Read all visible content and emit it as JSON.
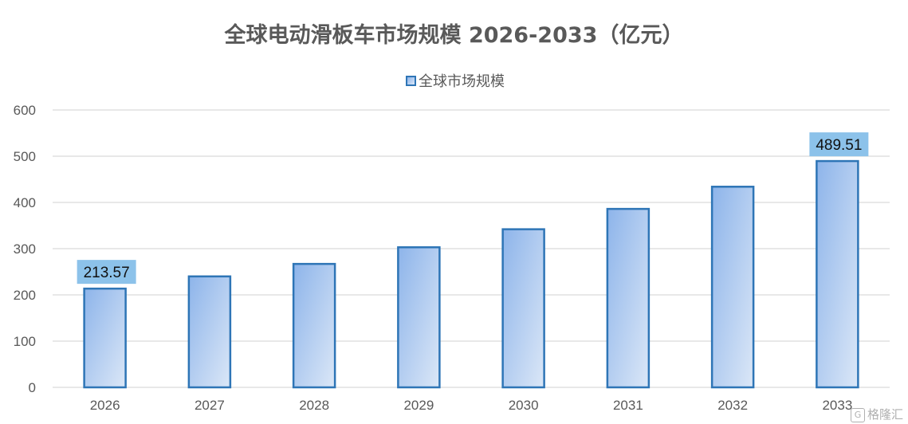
{
  "chart_data": {
    "type": "bar",
    "title": "全球电动滑板车市场规模 2026-2033（亿元）",
    "categories": [
      "2026",
      "2027",
      "2028",
      "2029",
      "2030",
      "2031",
      "2032",
      "2033"
    ],
    "series": [
      {
        "name": "全球市场规模",
        "values": [
          213.57,
          240,
          267,
          303,
          342,
          386,
          434,
          489.51
        ]
      }
    ],
    "data_labels": [
      {
        "category": "2026",
        "text": "213.57"
      },
      {
        "category": "2033",
        "text": "489.51"
      }
    ],
    "ylim": [
      0,
      600
    ],
    "yticks": [
      "0",
      "100",
      "200",
      "300",
      "400",
      "500",
      "600"
    ],
    "grid": true,
    "legend_position": "top",
    "colors": {
      "bar_stroke": "#2e75b6",
      "bar_fill_start": "#8db4ea",
      "bar_fill_end": "#dbe7f7",
      "label_bg": "#8cc2ea",
      "grid": "#d9d9d9",
      "text": "#595959"
    }
  },
  "watermark": {
    "logo": "G",
    "text": "格隆汇"
  }
}
